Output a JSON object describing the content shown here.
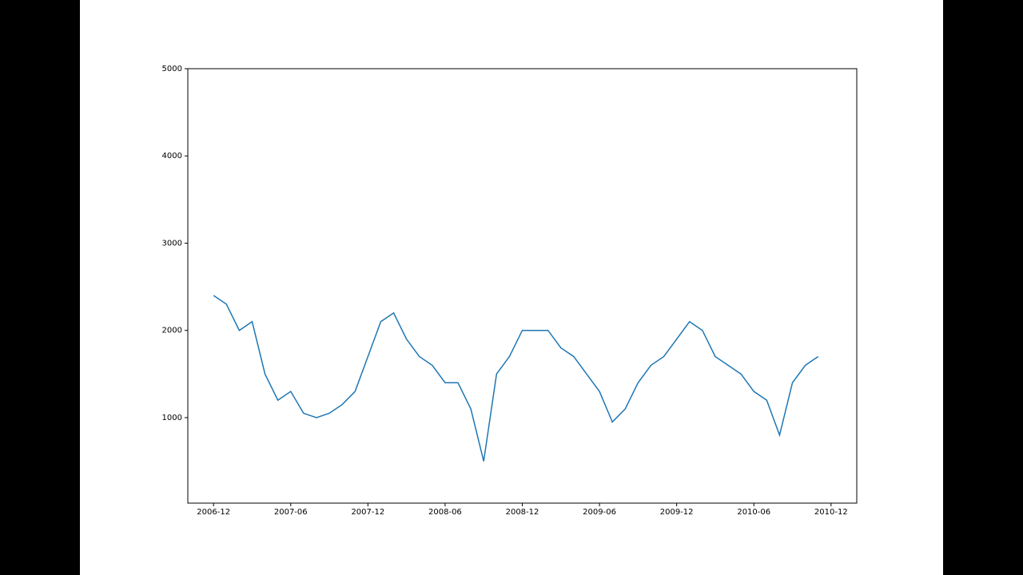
{
  "chart_data": {
    "type": "line",
    "x": [
      "2006-12",
      "2007-01",
      "2007-02",
      "2007-03",
      "2007-04",
      "2007-05",
      "2007-06",
      "2007-07",
      "2007-08",
      "2007-09",
      "2007-10",
      "2007-11",
      "2007-12",
      "2008-01",
      "2008-02",
      "2008-03",
      "2008-04",
      "2008-05",
      "2008-06",
      "2008-07",
      "2008-08",
      "2008-09",
      "2008-10",
      "2008-11",
      "2008-12",
      "2009-01",
      "2009-02",
      "2009-03",
      "2009-04",
      "2009-05",
      "2009-06",
      "2009-07",
      "2009-08",
      "2009-09",
      "2009-10",
      "2009-11",
      "2009-12",
      "2010-01",
      "2010-02",
      "2010-03",
      "2010-04",
      "2010-05",
      "2010-06",
      "2010-07",
      "2010-08",
      "2010-09",
      "2010-10",
      "2010-11"
    ],
    "series": [
      {
        "color": "#1f77b4",
        "values": [
          2400,
          2300,
          2000,
          2100,
          1500,
          1200,
          1300,
          1050,
          1000,
          1050,
          1150,
          1300,
          1700,
          2100,
          2200,
          1900,
          1700,
          1600,
          1400,
          1400,
          1100,
          500,
          1500,
          1700,
          2000,
          2000,
          2000,
          1800,
          1700,
          1500,
          1300,
          950,
          1100,
          1400,
          1600,
          1700,
          1900,
          2100,
          2000,
          1700,
          1600,
          1500,
          1300,
          1200,
          800,
          1400,
          1600,
          1700
        ]
      }
    ],
    "xlim": [
      "2006-10",
      "2011-02"
    ],
    "xticks": [
      "2006-12",
      "2007-06",
      "2007-12",
      "2008-06",
      "2008-12",
      "2009-06",
      "2009-12",
      "2010-06",
      "2010-12"
    ],
    "ylim": [
      20,
      5000
    ],
    "yticks": [
      1000,
      2000,
      3000,
      4000,
      5000
    ]
  }
}
